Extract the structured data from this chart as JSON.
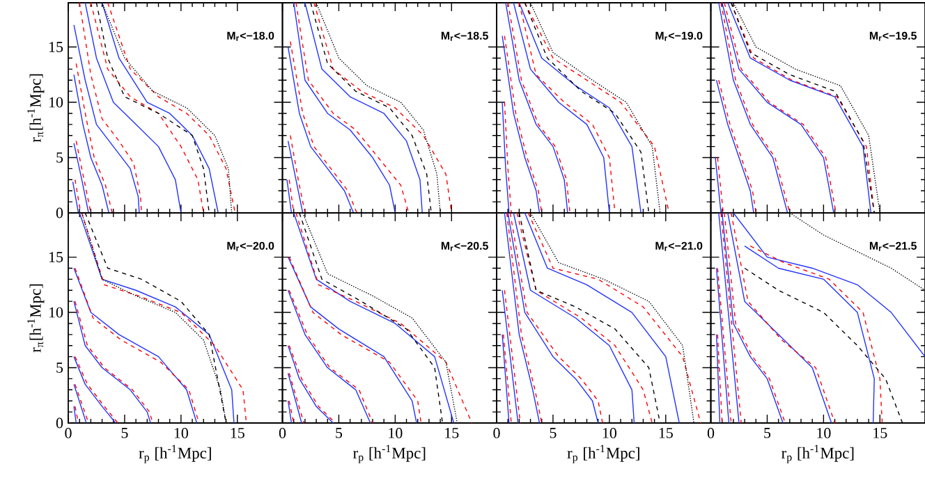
{
  "chart_data": [
    {
      "type": "line",
      "annotations": [
        "M$_{r}$<−18.0"
      ],
      "ylabel": "r$_{π}$[h$^{-1}$Mpc]",
      "xlim": [
        0,
        19
      ],
      "ylim": [
        0,
        19
      ],
      "xticks": [
        0,
        5,
        10,
        15
      ],
      "yticks": [
        0,
        5,
        10,
        15
      ],
      "tick_labels": "y",
      "series": [
        {
          "color": "#2233ff",
          "line_style": "solid",
          "x": [
            0.4,
            0.9
          ],
          "values": [
            2.8,
            0
          ]
        },
        {
          "color": "#2233ff",
          "line_style": "solid",
          "x": [
            0.5,
            1.2,
            1.8
          ],
          "values": [
            6.3,
            3,
            0
          ]
        },
        {
          "color": "#2233ff",
          "line_style": "solid",
          "x": [
            0.5,
            1.3,
            2,
            3,
            3.6
          ],
          "values": [
            12.5,
            8,
            5,
            2.5,
            0
          ]
        },
        {
          "color": "#2233ff",
          "line_style": "solid",
          "x": [
            0.5,
            1.5,
            2.5,
            4,
            5.5,
            6.2,
            6.3
          ],
          "values": [
            17,
            12,
            8,
            6,
            4,
            1.5,
            0
          ]
        },
        {
          "color": "#2233ff",
          "line_style": "solid",
          "x": [
            1.5,
            2.5,
            4,
            6,
            8,
            9.5,
            10
          ],
          "values": [
            19,
            14,
            10,
            8,
            6,
            3,
            0
          ]
        },
        {
          "color": "#2233ff",
          "line_style": "solid",
          "x": [
            3,
            4.5,
            7,
            9,
            11,
            12.5,
            13.3
          ],
          "values": [
            19,
            14,
            10,
            9,
            7,
            4,
            0
          ]
        },
        {
          "color": "#ff0000",
          "line_style": "dashed",
          "x": [
            0.6,
            1.1
          ],
          "values": [
            3,
            0
          ]
        },
        {
          "color": "#ff0000",
          "line_style": "dashed",
          "x": [
            0.7,
            1.4,
            2
          ],
          "values": [
            6.5,
            3,
            0
          ]
        },
        {
          "color": "#ff0000",
          "line_style": "dashed",
          "x": [
            0.7,
            1.6,
            2.3,
            3.3,
            3.9
          ],
          "values": [
            13.5,
            8.5,
            5,
            2.5,
            0
          ]
        },
        {
          "color": "#ff0000",
          "line_style": "dashed",
          "x": [
            1,
            2,
            3,
            4.5,
            5.8,
            6.4,
            6.5
          ],
          "values": [
            19,
            12.5,
            8.5,
            6.5,
            4.5,
            1.5,
            0
          ]
        },
        {
          "color": "#ff0000",
          "line_style": "dashed",
          "x": [
            2,
            3.5,
            5.5,
            8,
            10,
            11.5,
            12
          ],
          "values": [
            19,
            13,
            10.5,
            9,
            6,
            3,
            0
          ]
        },
        {
          "color": "#ff0000",
          "line_style": "dashed",
          "x": [
            3.5,
            5.5,
            8,
            10.5,
            12.5,
            14,
            14.8
          ],
          "values": [
            19,
            13,
            10.5,
            9,
            7,
            4,
            0
          ]
        },
        {
          "color": "#000000",
          "line_style": "dashed",
          "x": [
            2.5,
            3.5,
            5,
            8,
            11,
            12,
            12.5
          ],
          "values": [
            19,
            14,
            10.5,
            9,
            7,
            4,
            0
          ]
        },
        {
          "color": "#000000",
          "line_style": "dotted",
          "x": [
            3,
            5,
            7.5,
            10.5,
            13,
            14.2,
            14.5
          ],
          "values": [
            19,
            14,
            11,
            9.5,
            7,
            4,
            0
          ]
        }
      ]
    },
    {
      "type": "line",
      "annotations": [
        "M$_{r}$<−18.5"
      ],
      "xlim": [
        0,
        19
      ],
      "ylim": [
        0,
        19
      ],
      "xticks": [
        0,
        5,
        10,
        15
      ],
      "yticks": [
        0,
        5,
        10,
        15
      ],
      "tick_labels": false,
      "series": [
        {
          "color": "#2233ff",
          "line_style": "solid",
          "x": [
            0.4,
            0.8
          ],
          "values": [
            3,
            0
          ]
        },
        {
          "color": "#2233ff",
          "line_style": "solid",
          "x": [
            0.5,
            1.2,
            1.8
          ],
          "values": [
            6.5,
            3,
            0
          ]
        },
        {
          "color": "#2233ff",
          "line_style": "solid",
          "x": [
            0.5,
            1.5,
            2.5,
            4,
            5.5,
            6.3
          ],
          "values": [
            15,
            9,
            6,
            4,
            2,
            0
          ]
        },
        {
          "color": "#2233ff",
          "line_style": "solid",
          "x": [
            1,
            2,
            4,
            6,
            8,
            9.5,
            10
          ],
          "values": [
            19,
            12,
            9,
            7.5,
            5,
            2.5,
            0
          ]
        },
        {
          "color": "#2233ff",
          "line_style": "solid",
          "x": [
            2,
            3.5,
            6,
            9,
            11,
            12.2,
            12.4
          ],
          "values": [
            19,
            13,
            10.5,
            9,
            6.5,
            3,
            0
          ]
        },
        {
          "color": "#ff0000",
          "line_style": "dashed",
          "x": [
            0.6,
            1
          ],
          "values": [
            3,
            0
          ]
        },
        {
          "color": "#ff0000",
          "line_style": "dashed",
          "x": [
            0.7,
            1.4,
            2
          ],
          "values": [
            7,
            3,
            0
          ]
        },
        {
          "color": "#ff0000",
          "line_style": "dashed",
          "x": [
            0.7,
            1.8,
            2.8,
            4.3,
            5.8,
            6.6
          ],
          "values": [
            15.5,
            9,
            6,
            4,
            2,
            0
          ]
        },
        {
          "color": "#ff0000",
          "line_style": "dashed",
          "x": [
            1.2,
            2.3,
            4.5,
            6.5,
            8.5,
            10.5,
            11.2
          ],
          "values": [
            19,
            12,
            9,
            7.5,
            5,
            2.5,
            0
          ]
        },
        {
          "color": "#ff0000",
          "line_style": "dashed",
          "x": [
            2.8,
            4.5,
            7,
            10,
            12.5,
            14.5,
            15
          ],
          "values": [
            19,
            13,
            11,
            9.5,
            7,
            3.5,
            0
          ]
        },
        {
          "color": "#000000",
          "line_style": "dashed",
          "x": [
            2.5,
            4,
            6.5,
            9.5,
            11.5,
            12.8,
            13.2
          ],
          "values": [
            19,
            13.5,
            11,
            9.5,
            7,
            3.5,
            0
          ]
        },
        {
          "color": "#000000",
          "line_style": "dotted",
          "x": [
            3,
            5,
            7.5,
            10.5,
            12.5,
            13.7,
            14
          ],
          "values": [
            19,
            14,
            11.5,
            10,
            7.5,
            3.5,
            0
          ]
        }
      ]
    },
    {
      "type": "line",
      "annotations": [
        "M$_{r}$<−19.0"
      ],
      "xlim": [
        0,
        19
      ],
      "ylim": [
        0,
        19
      ],
      "xticks": [
        0,
        5,
        10,
        15
      ],
      "yticks": [
        0,
        5,
        10,
        15
      ],
      "tick_labels": false,
      "series": [
        {
          "color": "#2233ff",
          "line_style": "solid",
          "x": [
            0.5,
            0.8,
            1.1
          ],
          "values": [
            10,
            4,
            0
          ]
        },
        {
          "color": "#2233ff",
          "line_style": "solid",
          "x": [
            0.5,
            1.5,
            2.5,
            3.5,
            3.8
          ],
          "values": [
            16,
            9,
            5,
            2,
            0
          ]
        },
        {
          "color": "#2233ff",
          "line_style": "solid",
          "x": [
            0.8,
            2,
            3.5,
            5,
            6,
            6.3
          ],
          "values": [
            19,
            12,
            8,
            6,
            3,
            0
          ]
        },
        {
          "color": "#2233ff",
          "line_style": "solid",
          "x": [
            1.5,
            3,
            5.5,
            8,
            9.5,
            10
          ],
          "values": [
            19,
            13,
            10,
            8,
            5,
            0
          ]
        },
        {
          "color": "#2233ff",
          "line_style": "solid",
          "x": [
            2,
            4,
            7,
            10,
            12,
            12.8
          ],
          "values": [
            19,
            14,
            11.5,
            9.5,
            6,
            0
          ]
        },
        {
          "color": "#ff0000",
          "line_style": "dashed",
          "x": [
            0.7,
            1,
            1.3
          ],
          "values": [
            10,
            4,
            0
          ]
        },
        {
          "color": "#ff0000",
          "line_style": "dashed",
          "x": [
            0.7,
            1.7,
            2.7,
            3.7,
            4
          ],
          "values": [
            16,
            9,
            5,
            2,
            0
          ]
        },
        {
          "color": "#ff0000",
          "line_style": "dashed",
          "x": [
            1,
            2.2,
            3.7,
            5.2,
            6.2,
            6.5
          ],
          "values": [
            19,
            12,
            8,
            6,
            3,
            0
          ]
        },
        {
          "color": "#ff0000",
          "line_style": "dashed",
          "x": [
            2,
            3.5,
            6,
            8.5,
            10,
            10.5
          ],
          "values": [
            19,
            12.5,
            10,
            8,
            5,
            0
          ]
        },
        {
          "color": "#ff0000",
          "line_style": "dashed",
          "x": [
            2.5,
            5,
            8,
            11,
            14,
            15.3
          ],
          "values": [
            19,
            14,
            12,
            10,
            6,
            0
          ]
        },
        {
          "color": "#000000",
          "line_style": "dashed",
          "x": [
            2.5,
            4.5,
            7.5,
            10.5,
            12.8,
            13.5
          ],
          "values": [
            19,
            14,
            11,
            9,
            5.5,
            0
          ]
        },
        {
          "color": "#000000",
          "line_style": "dotted",
          "x": [
            3,
            5,
            8.5,
            11.5,
            13.8,
            14.5
          ],
          "values": [
            19,
            14.5,
            12,
            10,
            6,
            0
          ]
        }
      ]
    },
    {
      "type": "line",
      "annotations": [
        "M$_{r}$<−19.5"
      ],
      "xlim": [
        0,
        19
      ],
      "ylim": [
        0,
        19
      ],
      "xticks": [
        0,
        5,
        10,
        15
      ],
      "yticks": [
        0,
        5,
        10,
        15
      ],
      "tick_labels": false,
      "series": [
        {
          "color": "#2233ff",
          "line_style": "solid",
          "x": [
            0.4,
            0.9
          ],
          "values": [
            5,
            0
          ]
        },
        {
          "color": "#2233ff",
          "line_style": "solid",
          "x": [
            0.5,
            1.5,
            2.5,
            3.5,
            3.8
          ],
          "values": [
            12,
            8,
            5,
            2,
            0
          ]
        },
        {
          "color": "#2233ff",
          "line_style": "solid",
          "x": [
            0.7,
            2,
            3.5,
            5.5,
            6.8
          ],
          "values": [
            19,
            12,
            8,
            5,
            0
          ]
        },
        {
          "color": "#2233ff",
          "line_style": "solid",
          "x": [
            1,
            2.5,
            5,
            8,
            10,
            10.9
          ],
          "values": [
            19,
            13,
            10,
            8,
            5,
            0
          ]
        },
        {
          "color": "#2233ff",
          "line_style": "solid",
          "x": [
            1.5,
            3.5,
            7,
            11,
            13.5,
            14.2
          ],
          "values": [
            19,
            14,
            12,
            10.5,
            6,
            0
          ]
        },
        {
          "color": "#ff0000",
          "line_style": "dashed",
          "x": [
            0.6,
            1.1
          ],
          "values": [
            5,
            0
          ]
        },
        {
          "color": "#ff0000",
          "line_style": "dashed",
          "x": [
            0.7,
            1.7,
            2.7,
            3.7,
            4
          ],
          "values": [
            12,
            8,
            5,
            2,
            0
          ]
        },
        {
          "color": "#ff0000",
          "line_style": "dashed",
          "x": [
            0.9,
            2.2,
            3.7,
            5.7,
            7
          ],
          "values": [
            19,
            12,
            8,
            5,
            0
          ]
        },
        {
          "color": "#ff0000",
          "line_style": "dashed",
          "x": [
            1.2,
            2.7,
            5.2,
            8.2,
            10.2,
            11.1
          ],
          "values": [
            19,
            13,
            10,
            8,
            5,
            0
          ]
        },
        {
          "color": "#ff0000",
          "line_style": "dashed",
          "x": [
            1.8,
            3.8,
            7.2,
            11.2,
            13.8,
            14.5
          ],
          "values": [
            19,
            14,
            12,
            10.5,
            6,
            0
          ]
        },
        {
          "color": "#000000",
          "line_style": "dashed",
          "x": [
            1.8,
            3.5,
            7,
            11,
            13.5,
            14.5
          ],
          "values": [
            19,
            14.5,
            12.5,
            11,
            6.5,
            0
          ]
        },
        {
          "color": "#000000",
          "line_style": "dotted",
          "x": [
            2,
            4,
            7.5,
            11.5,
            14,
            15
          ],
          "values": [
            19,
            15,
            13,
            11.5,
            7,
            0
          ]
        }
      ]
    },
    {
      "type": "line",
      "annotations": [
        "M$_{r}$<−20.0"
      ],
      "xlabel": "r$_{p}$ [h$^{-1}$Mpc]",
      "ylabel": "r$_{π}$[h$^{-1}$Mpc]",
      "xlim": [
        0,
        19
      ],
      "ylim": [
        0,
        19
      ],
      "xticks": [
        0,
        5,
        10,
        15
      ],
      "yticks": [
        0,
        5,
        10,
        15
      ],
      "series": [
        {
          "color": "#2233ff",
          "line_style": "solid",
          "x": [
            0.5,
            0.7
          ],
          "values": [
            1.5,
            0
          ]
        },
        {
          "color": "#2233ff",
          "line_style": "solid",
          "x": [
            0.5,
            1.6
          ],
          "values": [
            3.5,
            0
          ]
        },
        {
          "color": "#2233ff",
          "line_style": "solid",
          "x": [
            0.5,
            1.5,
            3,
            4.2
          ],
          "values": [
            6,
            3.5,
            1.5,
            0
          ]
        },
        {
          "color": "#2233ff",
          "line_style": "solid",
          "x": [
            0.5,
            1.5,
            3,
            5.5,
            7,
            7.3
          ],
          "values": [
            11,
            7,
            5,
            3,
            1,
            0
          ]
        },
        {
          "color": "#2233ff",
          "line_style": "solid",
          "x": [
            0.5,
            2,
            4.5,
            8,
            10.5,
            11.4
          ],
          "values": [
            14,
            10,
            8,
            6,
            3,
            0
          ]
        },
        {
          "color": "#2233ff",
          "line_style": "solid",
          "x": [
            1,
            3,
            6,
            9.5,
            12.5,
            14.5,
            14.7
          ],
          "values": [
            19,
            13,
            12,
            10.5,
            8,
            3,
            0
          ]
        },
        {
          "color": "#ff0000",
          "line_style": "dashed",
          "x": [
            0.6,
            0.9
          ],
          "values": [
            1.5,
            0
          ]
        },
        {
          "color": "#ff0000",
          "line_style": "dashed",
          "x": [
            0.6,
            1.8
          ],
          "values": [
            3.5,
            0
          ]
        },
        {
          "color": "#ff0000",
          "line_style": "dashed",
          "x": [
            0.6,
            1.7,
            3.2,
            4.4
          ],
          "values": [
            6,
            3.5,
            1.5,
            0
          ]
        },
        {
          "color": "#ff0000",
          "line_style": "dashed",
          "x": [
            0.6,
            1.7,
            3.2,
            5.7,
            7.2,
            7.5
          ],
          "values": [
            11,
            7,
            5,
            3,
            1,
            0
          ]
        },
        {
          "color": "#ff0000",
          "line_style": "dashed",
          "x": [
            0.6,
            2.2,
            4.7,
            8.2,
            10.7,
            11.6
          ],
          "values": [
            14,
            9.5,
            7.5,
            5.5,
            3,
            0
          ]
        },
        {
          "color": "#ff0000",
          "line_style": "dashed",
          "x": [
            1.2,
            3.2,
            6.2,
            10,
            13,
            15.5,
            15.8
          ],
          "values": [
            19,
            12.5,
            11.5,
            10,
            7,
            3,
            0
          ]
        },
        {
          "color": "#000000",
          "line_style": "dashed",
          "x": [
            1.5,
            3.5,
            6.5,
            10,
            12.5,
            14
          ],
          "values": [
            19,
            14,
            13,
            11,
            8,
            0
          ]
        },
        {
          "color": "#000000",
          "line_style": "dotted",
          "x": [
            1.2,
            3,
            6,
            9.5,
            12,
            13.5,
            14
          ],
          "values": [
            19,
            13,
            11.5,
            10,
            7.5,
            3,
            0
          ]
        }
      ]
    },
    {
      "type": "line",
      "annotations": [
        "M$_{r}$<−20.5"
      ],
      "xlabel": "r$_{p}$ [h$^{-1}$Mpc]",
      "xlim": [
        0,
        19
      ],
      "ylim": [
        0,
        19
      ],
      "xticks": [
        0,
        5,
        10,
        15
      ],
      "yticks": [
        0,
        5,
        10,
        15
      ],
      "tick_labels": "x",
      "series": [
        {
          "color": "#2233ff",
          "line_style": "solid",
          "x": [
            0.5,
            0.8
          ],
          "values": [
            2,
            0
          ]
        },
        {
          "color": "#2233ff",
          "line_style": "solid",
          "x": [
            0.5,
            1.7
          ],
          "values": [
            4.5,
            0
          ]
        },
        {
          "color": "#2233ff",
          "line_style": "solid",
          "x": [
            0.5,
            1.5,
            3,
            4.5
          ],
          "values": [
            7,
            4,
            1.5,
            0
          ]
        },
        {
          "color": "#2233ff",
          "line_style": "solid",
          "x": [
            0.5,
            2,
            4,
            6.5,
            7.8
          ],
          "values": [
            12,
            8,
            5,
            3,
            0
          ]
        },
        {
          "color": "#2233ff",
          "line_style": "solid",
          "x": [
            0.5,
            2.5,
            5,
            9,
            11.5,
            11.9
          ],
          "values": [
            15,
            10.5,
            8.5,
            6,
            2,
            0
          ]
        },
        {
          "color": "#2233ff",
          "line_style": "solid",
          "x": [
            1,
            3,
            6,
            10,
            13.5,
            15.2
          ],
          "values": [
            19,
            13,
            11,
            9,
            6,
            0
          ]
        },
        {
          "color": "#ff0000",
          "line_style": "dashed",
          "x": [
            0.6,
            1
          ],
          "values": [
            2,
            0
          ]
        },
        {
          "color": "#ff0000",
          "line_style": "dashed",
          "x": [
            0.6,
            1.9
          ],
          "values": [
            4.5,
            0
          ]
        },
        {
          "color": "#ff0000",
          "line_style": "dashed",
          "x": [
            0.6,
            1.7,
            3.2,
            4.7
          ],
          "values": [
            7,
            4,
            1.5,
            0
          ]
        },
        {
          "color": "#ff0000",
          "line_style": "dashed",
          "x": [
            0.6,
            2.2,
            4.2,
            6.8,
            8
          ],
          "values": [
            12,
            8,
            5,
            3,
            0
          ]
        },
        {
          "color": "#ff0000",
          "line_style": "dashed",
          "x": [
            0.6,
            2.7,
            5.2,
            9.5,
            12,
            12.3
          ],
          "values": [
            15,
            10,
            8,
            5.5,
            2,
            0
          ]
        },
        {
          "color": "#ff0000",
          "line_style": "dashed",
          "x": [
            1.2,
            3.2,
            6.5,
            10.5,
            14.5,
            16.8
          ],
          "values": [
            19,
            12.5,
            11,
            9,
            5.5,
            0
          ]
        },
        {
          "color": "#000000",
          "line_style": "dashed",
          "x": [
            1.5,
            3.5,
            7,
            11,
            13.5,
            14.2
          ],
          "values": [
            19,
            13,
            11,
            8.5,
            5,
            0
          ]
        },
        {
          "color": "#000000",
          "line_style": "dotted",
          "x": [
            1.8,
            4,
            8,
            11.5,
            14.5,
            15.5
          ],
          "values": [
            19,
            13.5,
            11.5,
            9.5,
            5.5,
            0
          ]
        }
      ]
    },
    {
      "type": "line",
      "annotations": [
        "M$_{r}$<−21.0"
      ],
      "xlabel": "r$_{p}$ [h$^{-1}$Mpc]",
      "xlim": [
        0,
        19
      ],
      "ylim": [
        0,
        19
      ],
      "xticks": [
        0,
        5,
        10,
        15
      ],
      "yticks": [
        0,
        5,
        10,
        15
      ],
      "tick_labels": "x",
      "series": [
        {
          "color": "#2233ff",
          "line_style": "solid",
          "x": [
            0.5,
            1.1
          ],
          "values": [
            8,
            0
          ]
        },
        {
          "color": "#2233ff",
          "line_style": "solid",
          "x": [
            0.5,
            1.9
          ],
          "values": [
            12,
            0
          ]
        },
        {
          "color": "#2233ff",
          "line_style": "solid",
          "x": [
            0.7,
            2,
            3.2,
            3.8
          ],
          "values": [
            19,
            8,
            3,
            0
          ]
        },
        {
          "color": "#2233ff",
          "line_style": "solid",
          "x": [
            1,
            2.5,
            5,
            7,
            8.5,
            9
          ],
          "values": [
            19,
            10,
            6,
            4,
            2,
            0
          ]
        },
        {
          "color": "#2233ff",
          "line_style": "solid",
          "x": [
            1.5,
            3,
            7,
            10,
            12,
            12.2
          ],
          "values": [
            19,
            12,
            9.5,
            7,
            3,
            0
          ]
        },
        {
          "color": "#2233ff",
          "line_style": "solid",
          "x": [
            2.5,
            4.5,
            8,
            12,
            15,
            16.2
          ],
          "values": [
            19,
            14,
            12.5,
            10,
            6,
            0
          ]
        },
        {
          "color": "#ff0000",
          "line_style": "dashed",
          "x": [
            0.6,
            1.3
          ],
          "values": [
            8,
            0
          ]
        },
        {
          "color": "#ff0000",
          "line_style": "dashed",
          "x": [
            0.7,
            2.1
          ],
          "values": [
            12,
            0
          ]
        },
        {
          "color": "#ff0000",
          "line_style": "dashed",
          "x": [
            0.9,
            2.2,
            3.4,
            4
          ],
          "values": [
            19,
            8,
            3,
            0
          ]
        },
        {
          "color": "#ff0000",
          "line_style": "dashed",
          "x": [
            1.2,
            2.7,
            5.5,
            7.5,
            9,
            9.4
          ],
          "values": [
            19,
            10,
            6,
            4,
            2,
            0
          ]
        },
        {
          "color": "#ff0000",
          "line_style": "dashed",
          "x": [
            1.8,
            3.5,
            7.5,
            10.5,
            13,
            13.8
          ],
          "values": [
            19,
            12,
            9.5,
            7,
            3,
            0
          ]
        },
        {
          "color": "#ff0000",
          "line_style": "dashed",
          "x": [
            2.8,
            5,
            9,
            13,
            16.5,
            18.1
          ],
          "values": [
            19,
            14,
            13,
            10.5,
            6,
            0
          ]
        },
        {
          "color": "#000000",
          "line_style": "dashed",
          "x": [
            2,
            3.5,
            7,
            10.5,
            13.5,
            14.5
          ],
          "values": [
            19,
            12,
            10.5,
            8.5,
            5,
            0
          ]
        },
        {
          "color": "#000000",
          "line_style": "dotted",
          "x": [
            3,
            5.5,
            9.5,
            13.5,
            16.5,
            17.5
          ],
          "values": [
            19,
            14.5,
            13,
            11,
            7,
            0
          ]
        }
      ]
    },
    {
      "type": "line",
      "annotations": [
        "M$_{r}$<−21.5"
      ],
      "xlabel": "r$_{p}$ [h$^{-1}$Mpc]",
      "xlim": [
        0,
        19
      ],
      "ylim": [
        0,
        19
      ],
      "xticks": [
        0,
        5,
        10,
        15
      ],
      "yticks": [
        0,
        5,
        10,
        15
      ],
      "tick_labels": "x",
      "series": [
        {
          "color": "#2233ff",
          "line_style": "solid",
          "x": [
            0.5,
            0.8
          ],
          "values": [
            8,
            0
          ]
        },
        {
          "color": "#2233ff",
          "line_style": "solid",
          "x": [
            0.5,
            1.6
          ],
          "values": [
            14,
            0
          ]
        },
        {
          "color": "#2233ff",
          "line_style": "solid",
          "x": [
            0.7,
            2.5
          ],
          "values": [
            19,
            0
          ]
        },
        {
          "color": "#2233ff",
          "line_style": "solid",
          "x": [
            1,
            2,
            3.5,
            5,
            6.4
          ],
          "values": [
            19,
            9,
            6,
            4,
            0
          ]
        },
        {
          "color": "#2233ff",
          "line_style": "solid",
          "x": [
            1.5,
            3,
            6,
            9,
            10.7
          ],
          "values": [
            19,
            11,
            8,
            5,
            0
          ]
        },
        {
          "color": "#2233ff",
          "line_style": "solid",
          "x": [
            3,
            6,
            10,
            13,
            14.5,
            14.4
          ],
          "values": [
            16,
            14,
            13,
            10,
            4,
            0
          ]
        },
        {
          "color": "#2233ff",
          "line_style": "solid",
          "x": [
            2,
            5,
            9,
            13,
            16,
            19
          ],
          "values": [
            19,
            15,
            14,
            12.5,
            10,
            6
          ]
        },
        {
          "color": "#ff0000",
          "line_style": "dashed",
          "x": [
            0.6,
            1
          ],
          "values": [
            8,
            0
          ]
        },
        {
          "color": "#ff0000",
          "line_style": "dashed",
          "x": [
            0.6,
            1.8
          ],
          "values": [
            14,
            0
          ]
        },
        {
          "color": "#ff0000",
          "line_style": "dashed",
          "x": [
            0.9,
            2.7
          ],
          "values": [
            19,
            0
          ]
        },
        {
          "color": "#ff0000",
          "line_style": "dashed",
          "x": [
            1.2,
            2.2,
            3.7,
            5.2,
            6.6
          ],
          "values": [
            19,
            9,
            6,
            4,
            0
          ]
        },
        {
          "color": "#ff0000",
          "line_style": "dashed",
          "x": [
            1.8,
            3.3,
            6.3,
            9.3,
            11
          ],
          "values": [
            19,
            11,
            7.5,
            5,
            0
          ]
        },
        {
          "color": "#ff0000",
          "line_style": "dashed",
          "x": [
            3.5,
            6.5,
            10.5,
            13.5,
            15,
            15.2
          ],
          "values": [
            16,
            14.5,
            13,
            10,
            4,
            0
          ]
        },
        {
          "color": "#000000",
          "line_style": "dashed",
          "x": [
            3,
            6,
            10,
            13,
            15.5,
            17
          ],
          "values": [
            14,
            12,
            10,
            7,
            4,
            0
          ]
        },
        {
          "color": "#000000",
          "line_style": "dotted",
          "x": [
            7,
            10,
            13,
            16,
            19
          ],
          "values": [
            19,
            17,
            15.5,
            14,
            12
          ]
        }
      ]
    }
  ]
}
